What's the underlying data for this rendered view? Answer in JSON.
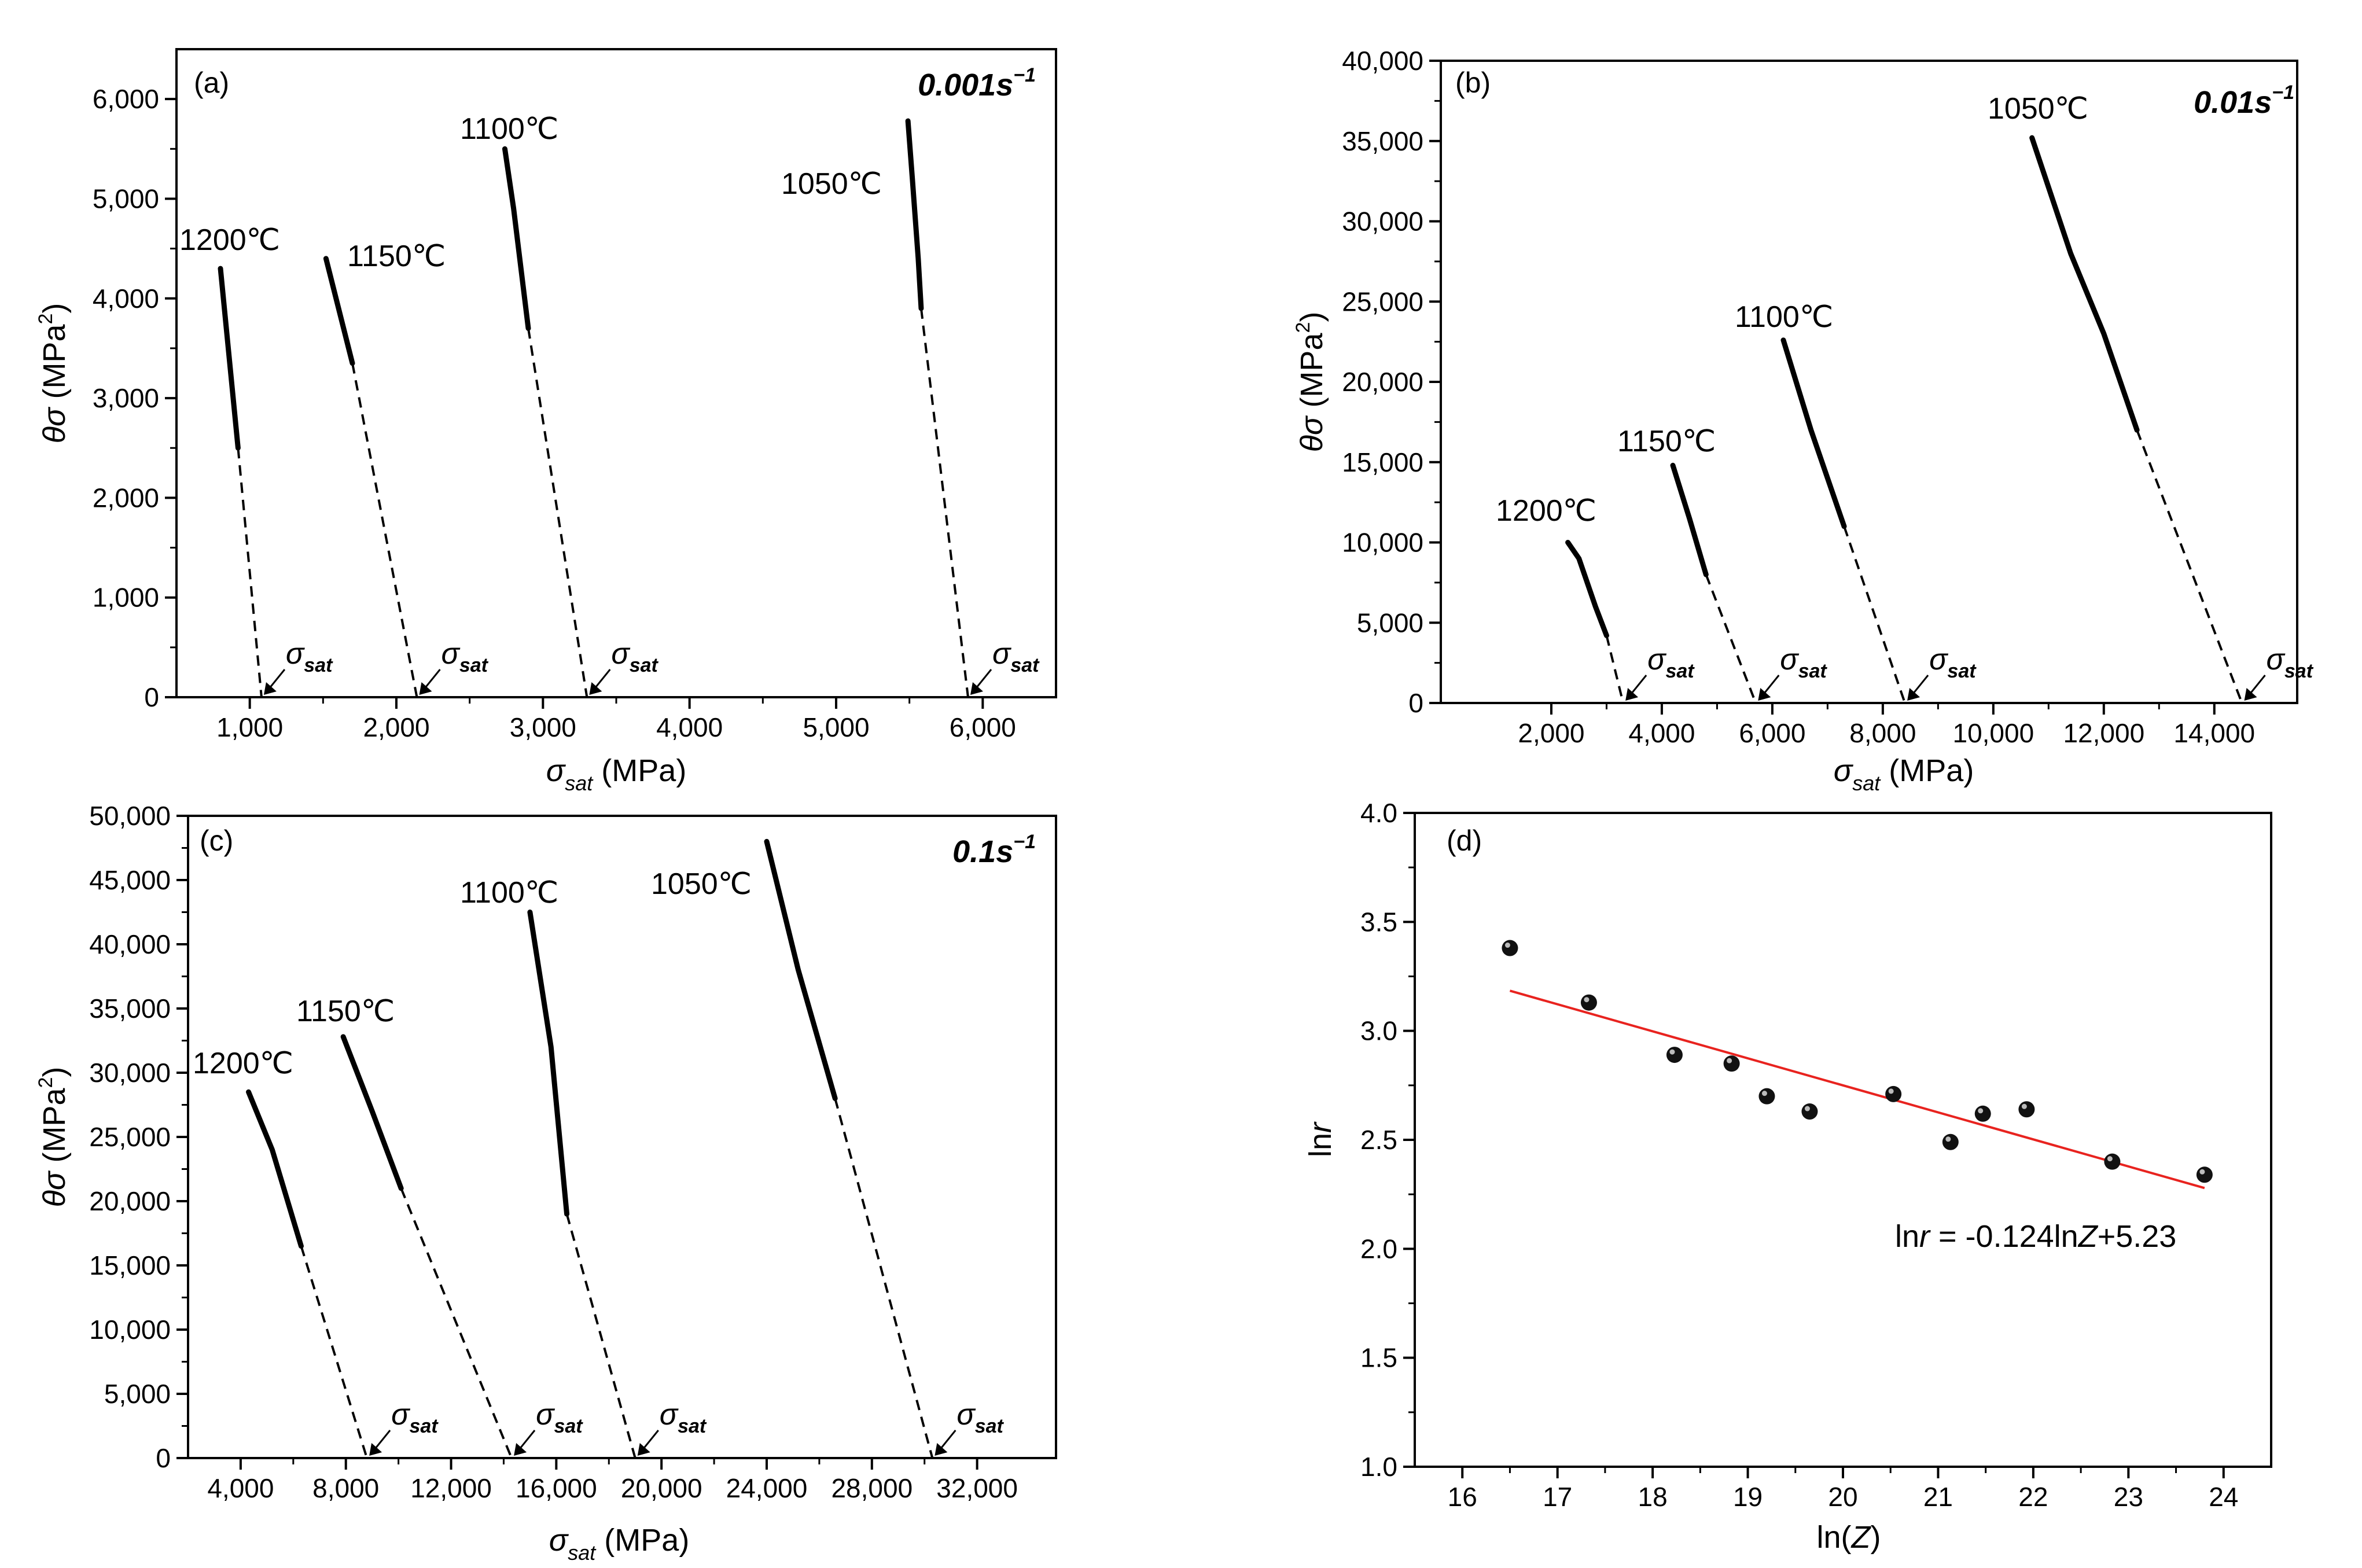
{
  "chart_data": [
    {
      "type": "line",
      "panel_label": "(a)",
      "rate_label": "0.001s",
      "rate_exp": "−1",
      "xlabel_sym": "σ",
      "xlabel_sub": "sat",
      "xlabel_unit": "(MPa)",
      "ylabel_sym": "θσ",
      "ylabel_unit": "(MPa",
      "ylabel_exp": "2",
      "ylabel_close": ")",
      "xlim": [
        500,
        6500
      ],
      "ylim": [
        0,
        6500
      ],
      "xticks": [
        1000,
        2000,
        3000,
        4000,
        5000,
        6000
      ],
      "xtick_labels": [
        "1,000",
        "2,000",
        "3,000",
        "4,000",
        "5,000",
        "6,000"
      ],
      "yticks": [
        0,
        1000,
        2000,
        3000,
        4000,
        5000,
        6000
      ],
      "ytick_labels": [
        "0",
        "1,000",
        "2,000",
        "3,000",
        "4,000",
        "5,000",
        "6,000"
      ],
      "sat_marker": "σ",
      "sat_sub": "sat",
      "series": [
        {
          "name": "1200℃",
          "solid": [
            [
              800,
              4300
            ],
            [
              820,
              4000
            ],
            [
              880,
              3100
            ],
            [
              920,
              2500
            ]
          ],
          "extrap_end": [
            1080,
            0
          ]
        },
        {
          "name": "1150℃",
          "solid": [
            [
              1520,
              4400
            ],
            [
              1580,
              4050
            ],
            [
              1700,
              3350
            ]
          ],
          "extrap_end": [
            2140,
            0
          ]
        },
        {
          "name": "1100℃",
          "solid": [
            [
              2740,
              5500
            ],
            [
              2800,
              4900
            ],
            [
              2900,
              3700
            ]
          ],
          "extrap_end": [
            3300,
            0
          ]
        },
        {
          "name": "1050℃",
          "solid": [
            [
              5490,
              5780
            ],
            [
              5520,
              5200
            ],
            [
              5560,
              4400
            ],
            [
              5580,
              3900
            ]
          ],
          "extrap_end": [
            5900,
            0
          ]
        }
      ]
    },
    {
      "type": "line",
      "panel_label": "(b)",
      "rate_label": "0.01s",
      "rate_exp": "−1",
      "xlabel_sym": "σ",
      "xlabel_sub": "sat",
      "xlabel_unit": "(MPa)",
      "ylabel_sym": "θσ",
      "ylabel_unit": "(MPa",
      "ylabel_exp": "2",
      "ylabel_close": ")",
      "xlim": [
        0,
        15500
      ],
      "ylim": [
        0,
        40000
      ],
      "xticks": [
        2000,
        4000,
        6000,
        8000,
        10000,
        12000,
        14000
      ],
      "xtick_labels": [
        "2,000",
        "4,000",
        "6,000",
        "8,000",
        "10,000",
        "12,000",
        "14,000"
      ],
      "yticks": [
        0,
        5000,
        10000,
        15000,
        20000,
        25000,
        30000,
        35000,
        40000
      ],
      "ytick_labels": [
        "0",
        "5,000",
        "10,000",
        "15,000",
        "20,000",
        "25,000",
        "30,000",
        "35,000",
        "40,000"
      ],
      "sat_marker": "σ",
      "sat_sub": "sat",
      "series": [
        {
          "name": "1200℃",
          "solid": [
            [
              2300,
              10000
            ],
            [
              2500,
              9000
            ],
            [
              2800,
              6000
            ],
            [
              3000,
              4200
            ]
          ],
          "extrap_end": [
            3300,
            0
          ]
        },
        {
          "name": "1150℃",
          "solid": [
            [
              4200,
              14800
            ],
            [
              4500,
              11500
            ],
            [
              4800,
              8000
            ]
          ],
          "extrap_end": [
            5700,
            0
          ]
        },
        {
          "name": "1100℃",
          "solid": [
            [
              6200,
              22600
            ],
            [
              6700,
              17000
            ],
            [
              7300,
              11000
            ]
          ],
          "extrap_end": [
            8400,
            0
          ]
        },
        {
          "name": "1050℃",
          "solid": [
            [
              10700,
              35200
            ],
            [
              11400,
              28000
            ],
            [
              12000,
              23000
            ],
            [
              12600,
              17000
            ]
          ],
          "extrap_end": [
            14500,
            0
          ]
        }
      ]
    },
    {
      "type": "line",
      "panel_label": "(c)",
      "rate_label": "0.1s",
      "rate_exp": "−1",
      "xlabel_sym": "σ",
      "xlabel_sub": "sat",
      "xlabel_unit": "(MPa)",
      "ylabel_sym": "θσ",
      "ylabel_unit": "(MPa",
      "ylabel_exp": "2",
      "ylabel_close": ")",
      "xlim": [
        2000,
        35000
      ],
      "ylim": [
        0,
        50000
      ],
      "xticks": [
        4000,
        8000,
        12000,
        16000,
        20000,
        24000,
        28000,
        32000
      ],
      "xtick_labels": [
        "4,000",
        "8,000",
        "12,000",
        "16,000",
        "20,000",
        "24,000",
        "28,000",
        "32,000"
      ],
      "yticks": [
        0,
        5000,
        10000,
        15000,
        20000,
        25000,
        30000,
        35000,
        40000,
        45000,
        50000
      ],
      "ytick_labels": [
        "0",
        "5,000",
        "10,000",
        "15,000",
        "20,000",
        "25,000",
        "30,000",
        "35,000",
        "40,000",
        "45,000",
        "50,000"
      ],
      "sat_marker": "σ",
      "sat_sub": "sat",
      "series": [
        {
          "name": "1200℃",
          "solid": [
            [
              4300,
              28500
            ],
            [
              5200,
              24000
            ],
            [
              6300,
              16500
            ]
          ],
          "extrap_end": [
            8800,
            0
          ]
        },
        {
          "name": "1150℃",
          "solid": [
            [
              7900,
              32800
            ],
            [
              9000,
              27000
            ],
            [
              10100,
              21000
            ]
          ],
          "extrap_end": [
            14300,
            0
          ]
        },
        {
          "name": "1100℃",
          "solid": [
            [
              15000,
              42500
            ],
            [
              15800,
              32000
            ],
            [
              16400,
              19000
            ]
          ],
          "extrap_end": [
            19000,
            0
          ]
        },
        {
          "name": "1050℃",
          "solid": [
            [
              24000,
              48000
            ],
            [
              25200,
              38000
            ],
            [
              26600,
              28000
            ]
          ],
          "extrap_end": [
            30300,
            0
          ]
        }
      ]
    },
    {
      "type": "scatter",
      "panel_label": "(d)",
      "xlabel": "ln(",
      "xlabel_var": "Z",
      "xlabel_close": ")",
      "ylabel": "ln",
      "ylabel_var": "r",
      "xlim": [
        15.5,
        24.5
      ],
      "ylim": [
        1.0,
        4.0
      ],
      "xticks": [
        16,
        17,
        18,
        19,
        20,
        21,
        22,
        23,
        24
      ],
      "xtick_labels": [
        "16",
        "17",
        "18",
        "19",
        "20",
        "21",
        "22",
        "23",
        "24"
      ],
      "yticks": [
        1.0,
        1.5,
        2.0,
        2.5,
        3.0,
        3.5,
        4.0
      ],
      "ytick_labels": [
        "1.0",
        "1.5",
        "2.0",
        "2.5",
        "3.0",
        "3.5",
        "4.0"
      ],
      "points": [
        [
          16.5,
          3.38
        ],
        [
          17.33,
          3.13
        ],
        [
          18.23,
          2.89
        ],
        [
          18.83,
          2.85
        ],
        [
          19.2,
          2.7
        ],
        [
          19.65,
          2.63
        ],
        [
          20.53,
          2.71
        ],
        [
          21.13,
          2.49
        ],
        [
          21.47,
          2.62
        ],
        [
          21.93,
          2.64
        ],
        [
          22.83,
          2.4
        ],
        [
          23.8,
          2.34
        ]
      ],
      "fit": {
        "slope": -0.124,
        "intercept": 5.23,
        "x_range": [
          16.5,
          23.8
        ],
        "color": "#e8231f"
      },
      "equation": {
        "p1": "ln",
        "p2": "r",
        "p3": " = -0.124ln",
        "p4": "Z",
        "p5": "+5.23"
      }
    }
  ]
}
